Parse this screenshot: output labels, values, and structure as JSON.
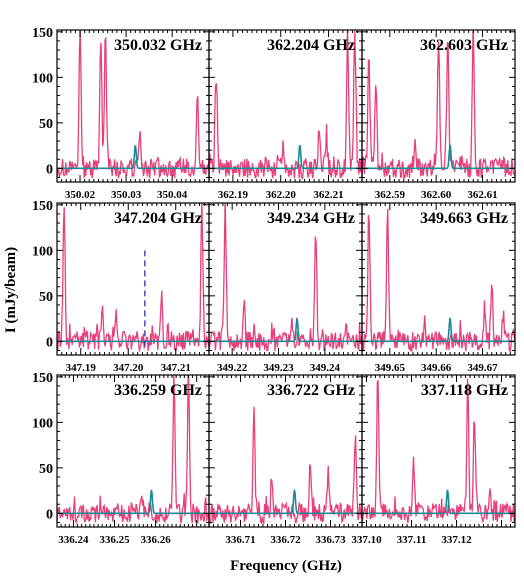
{
  "chart_data": {
    "type": "line",
    "title": "",
    "xlabel": "Frequency (GHz)",
    "ylabel": "I (mJy/beam)",
    "ylim": [
      -15,
      152
    ],
    "yticks": [
      0,
      50,
      100,
      150
    ],
    "colors": {
      "observed": "#e8407a",
      "model": "#1a8a96",
      "marker": "#2b2bb0"
    },
    "panels": [
      {
        "title": "350.032 GHz",
        "center": 350.032,
        "xlim": [
          350.015,
          350.048
        ],
        "xticks": [
          "350.02",
          "350.03",
          "350.04"
        ],
        "model_peak": 26,
        "peaks": [
          [
            350.02,
            150
          ],
          [
            350.0245,
            150
          ],
          [
            350.0255,
            150
          ],
          [
            350.033,
            35
          ],
          [
            350.0455,
            85
          ]
        ]
      },
      {
        "title": "362.204 GHz",
        "center": 362.204,
        "xlim": [
          362.185,
          362.217
        ],
        "xticks": [
          "362.19",
          "362.20",
          "362.21"
        ],
        "model_peak": 26,
        "peaks": [
          [
            362.1865,
            100
          ],
          [
            362.214,
            150
          ],
          [
            362.2155,
            150
          ],
          [
            362.208,
            40
          ],
          [
            362.2095,
            35
          ],
          [
            362.2005,
            20
          ]
        ]
      },
      {
        "title": "362.603 GHz",
        "center": 362.603,
        "xlim": [
          362.584,
          362.617
        ],
        "xticks": [
          "362.59",
          "362.60",
          "362.61"
        ],
        "model_peak": 26,
        "peaks": [
          [
            362.5855,
            125
          ],
          [
            362.587,
            95
          ],
          [
            362.6005,
            150
          ],
          [
            362.6025,
            150
          ],
          [
            362.608,
            150
          ],
          [
            362.5955,
            25
          ]
        ]
      },
      {
        "title": "347.204 GHz",
        "center": 347.204,
        "xlim": [
          347.185,
          347.217
        ],
        "xticks": [
          "347.19",
          "347.20",
          "347.21"
        ],
        "model_peak": 0,
        "marker": 347.2035,
        "peaks": [
          [
            347.1865,
            150
          ],
          [
            347.191,
            12
          ],
          [
            347.1945,
            40
          ],
          [
            347.1975,
            30
          ],
          [
            347.207,
            40
          ],
          [
            347.2155,
            150
          ]
        ]
      },
      {
        "title": "349.234 GHz",
        "center": 349.234,
        "xlim": [
          349.215,
          349.248
        ],
        "xticks": [
          "349.22",
          "349.23",
          "349.24"
        ],
        "model_peak": 26,
        "peaks": [
          [
            349.2185,
            150
          ],
          [
            349.2225,
            45
          ],
          [
            349.238,
            125
          ],
          [
            349.233,
            20
          ],
          [
            349.2445,
            10
          ]
        ]
      },
      {
        "title": "349.663 GHz",
        "center": 349.663,
        "xlim": [
          349.644,
          349.677
        ],
        "xticks": [
          "349.65",
          "349.66",
          "349.67"
        ],
        "model_peak": 26,
        "peaks": [
          [
            349.6455,
            150
          ],
          [
            349.6495,
            150
          ],
          [
            349.6575,
            25
          ],
          [
            349.6705,
            40
          ],
          [
            349.672,
            60
          ],
          [
            349.6745,
            30
          ]
        ]
      },
      {
        "title": "336.259 GHz",
        "center": 336.259,
        "xlim": [
          336.236,
          336.273
        ],
        "xticks": [
          "336.24",
          "336.25",
          "336.26"
        ],
        "model_peak": 26,
        "peaks": [
          [
            336.2645,
            150
          ],
          [
            336.268,
            150
          ],
          [
            336.2505,
            15
          ],
          [
            336.2565,
            20
          ]
        ]
      },
      {
        "title": "336.722 GHz",
        "center": 336.722,
        "xlim": [
          336.703,
          336.737
        ],
        "xticks": [
          "336.71",
          "336.72",
          "336.73"
        ],
        "model_peak": 26,
        "peaks": [
          [
            336.713,
            110
          ],
          [
            336.717,
            45
          ],
          [
            336.7255,
            55
          ],
          [
            336.7295,
            45
          ],
          [
            336.7355,
            80
          ]
        ]
      },
      {
        "title": "337.118 GHz",
        "center": 337.118,
        "xlim": [
          337.099,
          337.133
        ],
        "xticks": [
          "337.10",
          "337.11",
          "337.12"
        ],
        "model_peak": 26,
        "peaks": [
          [
            337.1025,
            150
          ],
          [
            337.1105,
            60
          ],
          [
            337.1225,
            150
          ],
          [
            337.124,
            110
          ],
          [
            337.1275,
            20
          ]
        ]
      }
    ]
  }
}
